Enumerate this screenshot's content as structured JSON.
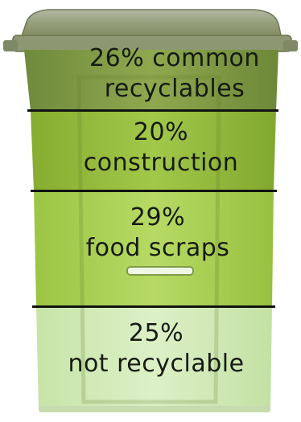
{
  "segments": [
    {
      "percent": "26%",
      "category": "common recyclables",
      "line1": "26% common",
      "line2": "recyclables"
    },
    {
      "percent": "20%",
      "category": "construction",
      "line1": "20%",
      "line2": "construction"
    },
    {
      "percent": "29%",
      "category": "food scraps",
      "line1": "29%",
      "line2": "food scraps"
    },
    {
      "percent": "25%",
      "category": "not recyclable",
      "line1": "25%",
      "line2": "not recyclable"
    }
  ],
  "colors": {
    "lid": "#8f9a72",
    "segment_1": "#86a24a",
    "segment_2": "#93bd3c",
    "segment_3": "#a9d152",
    "segment_4": "#d2ebb8",
    "divider": "#101410"
  }
}
